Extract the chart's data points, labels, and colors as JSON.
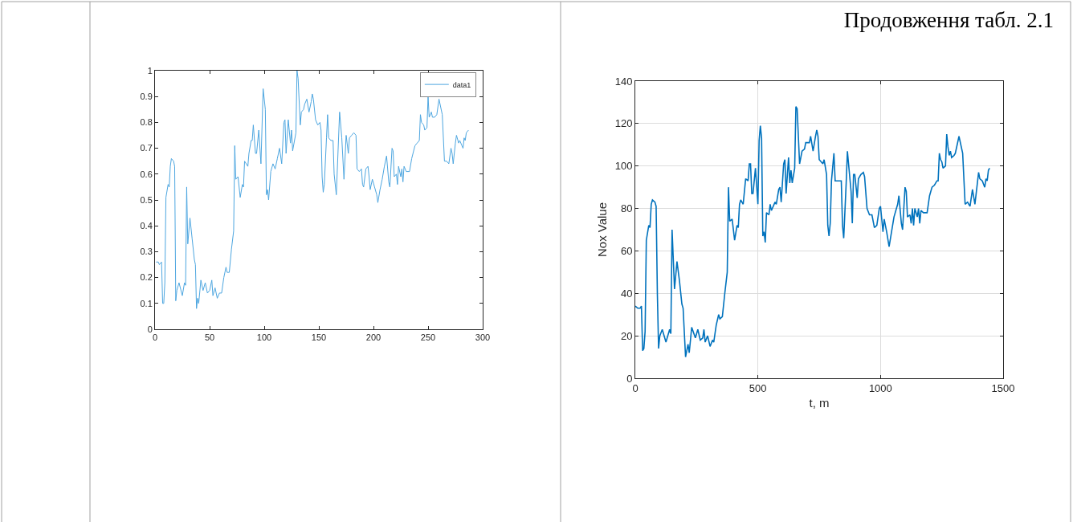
{
  "chart_data": [
    {
      "type": "line",
      "xlim": [
        0,
        300
      ],
      "ylim": [
        0,
        1
      ],
      "xticks": [
        0,
        50,
        100,
        150,
        200,
        250,
        300
      ],
      "yticks": [
        0,
        0.1,
        0.2,
        0.3,
        0.4,
        0.5,
        0.6,
        0.7,
        0.8,
        0.9,
        1
      ],
      "grid": false,
      "legend": "top right",
      "marker": "none",
      "line_style": "solid",
      "series": [
        {
          "name": "data1",
          "color": "#4da6e0",
          "x": [
            1,
            3,
            4,
            6,
            7,
            8,
            9,
            10,
            12,
            13,
            14,
            15,
            17,
            18,
            19,
            20,
            22,
            25,
            27,
            28,
            29,
            30,
            32,
            34,
            36,
            37,
            38,
            39,
            40,
            42,
            44,
            46,
            48,
            50,
            52,
            53,
            55,
            57,
            59,
            61,
            63,
            65,
            66,
            68,
            70,
            72,
            73,
            74,
            76,
            78,
            80,
            81,
            82,
            85,
            86,
            88,
            89,
            90,
            92,
            93,
            95,
            97,
            99,
            101,
            102,
            103,
            104,
            106,
            108,
            110,
            112,
            114,
            116,
            118,
            119,
            120,
            122,
            124,
            125,
            126,
            129,
            130,
            131,
            133,
            134,
            136,
            137,
            139,
            141,
            143,
            144,
            145,
            147,
            149,
            151,
            152,
            153,
            154,
            155,
            157,
            158,
            159,
            161,
            163,
            164,
            166,
            169,
            171,
            173,
            175,
            177,
            178,
            180,
            182,
            184,
            185,
            187,
            189,
            190,
            191,
            193,
            195,
            196,
            197,
            199,
            201,
            203,
            204,
            206,
            208,
            210,
            212,
            214,
            215,
            217,
            218,
            219,
            221,
            222,
            223,
            225,
            226,
            227,
            228,
            230,
            233,
            235,
            238,
            240,
            242,
            243,
            244,
            246,
            247,
            249,
            250,
            251,
            253,
            254,
            256,
            258,
            260,
            263,
            265,
            267,
            269,
            271,
            272,
            273,
            275,
            276,
            278,
            279,
            281,
            282,
            283,
            284,
            285,
            287
          ],
          "values": [
            0.26,
            0.26,
            0.25,
            0.26,
            0.1,
            0.1,
            0.18,
            0.51,
            0.56,
            0.55,
            0.63,
            0.66,
            0.65,
            0.63,
            0.11,
            0.15,
            0.18,
            0.13,
            0.18,
            0.17,
            0.55,
            0.33,
            0.43,
            0.35,
            0.27,
            0.25,
            0.08,
            0.12,
            0.1,
            0.19,
            0.15,
            0.18,
            0.14,
            0.15,
            0.19,
            0.13,
            0.16,
            0.12,
            0.14,
            0.14,
            0.2,
            0.24,
            0.22,
            0.22,
            0.31,
            0.38,
            0.71,
            0.58,
            0.59,
            0.51,
            0.56,
            0.55,
            0.65,
            0.63,
            0.68,
            0.73,
            0.73,
            0.79,
            0.68,
            0.68,
            0.77,
            0.64,
            0.93,
            0.85,
            0.52,
            0.54,
            0.5,
            0.61,
            0.64,
            0.62,
            0.66,
            0.7,
            0.64,
            0.8,
            0.81,
            0.68,
            0.81,
            0.72,
            0.77,
            0.69,
            0.76,
            1.0,
            0.97,
            0.79,
            0.84,
            0.85,
            0.87,
            0.89,
            0.84,
            0.88,
            0.91,
            0.89,
            0.81,
            0.79,
            0.8,
            0.77,
            0.59,
            0.53,
            0.56,
            0.74,
            0.83,
            0.74,
            0.73,
            0.73,
            0.6,
            0.52,
            0.84,
            0.74,
            0.58,
            0.75,
            0.68,
            0.74,
            0.75,
            0.76,
            0.75,
            0.62,
            0.61,
            0.62,
            0.56,
            0.55,
            0.62,
            0.63,
            0.59,
            0.54,
            0.58,
            0.55,
            0.52,
            0.49,
            0.54,
            0.58,
            0.63,
            0.67,
            0.57,
            0.55,
            0.7,
            0.69,
            0.59,
            0.6,
            0.56,
            0.63,
            0.59,
            0.62,
            0.57,
            0.63,
            0.61,
            0.61,
            0.66,
            0.71,
            0.72,
            0.73,
            0.83,
            0.8,
            0.79,
            0.77,
            0.78,
            0.9,
            0.82,
            0.84,
            0.82,
            0.82,
            0.83,
            0.89,
            0.83,
            0.65,
            0.65,
            0.64,
            0.7,
            0.68,
            0.64,
            0.72,
            0.75,
            0.72,
            0.73,
            0.71,
            0.7,
            0.74,
            0.73,
            0.76,
            0.77
          ]
        }
      ]
    },
    {
      "type": "line",
      "xlabel": "t, m",
      "ylabel": "Nox Value",
      "annotations": [
        "Продовження табл. 2.1"
      ],
      "xlim": [
        0,
        1500
      ],
      "ylim": [
        0,
        140
      ],
      "xticks": [
        0,
        500,
        1000,
        1500
      ],
      "yticks": [
        0,
        20,
        40,
        60,
        80,
        100,
        120,
        140
      ],
      "grid": true,
      "legend": false,
      "marker": "none",
      "line_style": "solid",
      "series": [
        {
          "color": "#0072bd",
          "x": [
            0,
            10,
            20,
            25,
            30,
            35,
            40,
            45,
            55,
            60,
            65,
            70,
            80,
            85,
            90,
            95,
            100,
            110,
            125,
            140,
            145,
            150,
            160,
            170,
            180,
            190,
            195,
            205,
            215,
            220,
            230,
            245,
            255,
            265,
            275,
            280,
            285,
            295,
            305,
            315,
            320,
            330,
            340,
            345,
            355,
            365,
            375,
            380,
            385,
            395,
            405,
            415,
            420,
            425,
            430,
            440,
            450,
            460,
            465,
            470,
            475,
            480,
            490,
            500,
            505,
            510,
            515,
            520,
            525,
            530,
            535,
            545,
            550,
            555,
            570,
            575,
            585,
            590,
            595,
            605,
            610,
            615,
            625,
            630,
            635,
            640,
            650,
            655,
            660,
            670,
            680,
            690,
            695,
            710,
            715,
            725,
            735,
            740,
            745,
            750,
            765,
            770,
            780,
            785,
            790,
            795,
            800,
            810,
            815,
            830,
            840,
            845,
            850,
            860,
            865,
            880,
            885,
            890,
            895,
            905,
            910,
            920,
            930,
            935,
            945,
            955,
            965,
            975,
            985,
            995,
            1000,
            1010,
            1015,
            1025,
            1035,
            1045,
            1055,
            1065,
            1070,
            1075,
            1085,
            1090,
            1100,
            1105,
            1110,
            1120,
            1125,
            1130,
            1135,
            1140,
            1150,
            1155,
            1160,
            1165,
            1175,
            1190,
            1200,
            1210,
            1220,
            1230,
            1235,
            1240,
            1245,
            1250,
            1255,
            1265,
            1270,
            1275,
            1280,
            1285,
            1290,
            1300,
            1305,
            1320,
            1335,
            1345,
            1355,
            1360,
            1365,
            1375,
            1385,
            1395,
            1400,
            1405,
            1415,
            1425,
            1430,
            1435,
            1440,
            1445
          ],
          "values": [
            34,
            33,
            33,
            34,
            13,
            14,
            22,
            65,
            72,
            71,
            82,
            84,
            83,
            81,
            40,
            14,
            20,
            23,
            17,
            23,
            21,
            70,
            42,
            55,
            46,
            35,
            33,
            10,
            16,
            12,
            24,
            19,
            23,
            18,
            19,
            23,
            17,
            20,
            15,
            18,
            17,
            25,
            30,
            28,
            29,
            40,
            50,
            90,
            74,
            75,
            65,
            72,
            71,
            82,
            84,
            82,
            94,
            93,
            101,
            101,
            87,
            87,
            99,
            82,
            112,
            119,
            113,
            67,
            69,
            64,
            78,
            77,
            82,
            79,
            83,
            82,
            89,
            90,
            83,
            101,
            103,
            87,
            104,
            92,
            98,
            92,
            99,
            128,
            127,
            101,
            107,
            108,
            111,
            111,
            114,
            107,
            114,
            117,
            114,
            103,
            101,
            103,
            96,
            72,
            67,
            73,
            93,
            106,
            93,
            93,
            93,
            72,
            66,
            92,
            107,
            88,
            73,
            96,
            96,
            85,
            94,
            96,
            97,
            95,
            80,
            77,
            77,
            71,
            72,
            80,
            81,
            69,
            75,
            69,
            62,
            69,
            76,
            80,
            82,
            86,
            73,
            70,
            90,
            88,
            76,
            77,
            73,
            80,
            72,
            80,
            76,
            80,
            73,
            79,
            78,
            78,
            86,
            90,
            91,
            93,
            93,
            106,
            103,
            102,
            99,
            100,
            115,
            109,
            105,
            107,
            104,
            105,
            106,
            114,
            106,
            82,
            83,
            82,
            81,
            89,
            82,
            92,
            97,
            94,
            93,
            90,
            94,
            93,
            98,
            99
          ]
        }
      ]
    }
  ]
}
